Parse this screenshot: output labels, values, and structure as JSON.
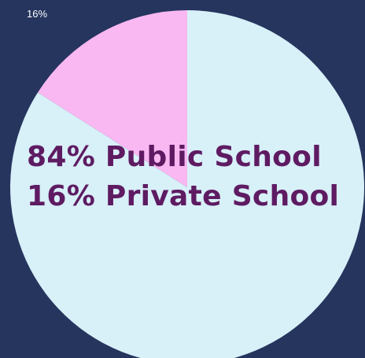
{
  "colors": {
    "background": "#25355E",
    "public_slice": "#D8F0F8",
    "private_slice": "#F9B8F2",
    "headline_text": "#5E1B62",
    "label_text": "#FFFFFF",
    "public_label_text": "#25355E"
  },
  "headline": {
    "line1": "84% Public School",
    "line2": "16% Private School"
  },
  "chart_data": {
    "type": "pie",
    "slices": [
      {
        "label": "Public School",
        "value": 84,
        "color": "#D8F0F8",
        "display_label": "Public School"
      },
      {
        "label": "Private School",
        "value": 16,
        "color": "#F9B8F2",
        "display_label": "16%"
      }
    ],
    "start_angle": "top",
    "direction": "counterclockwise-for-second-slice"
  }
}
